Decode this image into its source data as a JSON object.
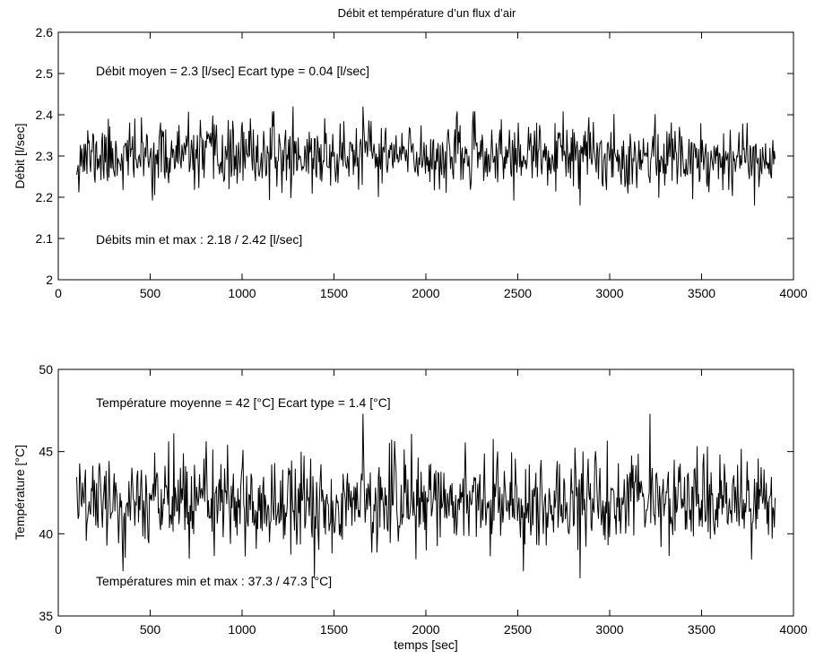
{
  "chart_data": [
    {
      "type": "line",
      "title": "Débit et température d’un flux d’air",
      "xlabel": "",
      "ylabel": "Débit [l/sec]",
      "xlim": [
        0,
        4000
      ],
      "ylim": [
        2,
        2.6
      ],
      "xticks": [
        "0",
        "500",
        "1000",
        "1500",
        "2000",
        "2500",
        "3000",
        "3500",
        "4000"
      ],
      "yticks": [
        "2",
        "2.1",
        "2.2",
        "2.3",
        "2.4",
        "2.5",
        "2.6"
      ],
      "grid": false,
      "legend": "none",
      "series_color": "#000000",
      "x_range": [
        100,
        3900
      ],
      "mean": 2.3,
      "std": 0.04,
      "min": 2.18,
      "max": 2.42,
      "annotations": {
        "stats": "Débit moyen = 2.3 [l/sec]   Ecart type = 0.04 [l/sec]",
        "minmax": "Débits min et max : 2.18 /  2.42 [l/sec]"
      }
    },
    {
      "type": "line",
      "title": "",
      "xlabel": "temps [sec]",
      "ylabel": "Température [°C]",
      "xlim": [
        0,
        4000
      ],
      "ylim": [
        35,
        50
      ],
      "xticks": [
        "0",
        "500",
        "1000",
        "1500",
        "2000",
        "2500",
        "3000",
        "3500",
        "4000"
      ],
      "yticks": [
        "35",
        "40",
        "45",
        "50"
      ],
      "grid": false,
      "legend": "none",
      "series_color": "#000000",
      "x_range": [
        100,
        3900
      ],
      "mean": 42,
      "std": 1.4,
      "min": 37.3,
      "max": 47.3,
      "annotations": {
        "stats": "Température moyenne = 42 [°C]   Ecart type = 1.4 [°C]",
        "minmax": "Températures min et max : 37.3 /  47.3 [°C]"
      }
    }
  ]
}
